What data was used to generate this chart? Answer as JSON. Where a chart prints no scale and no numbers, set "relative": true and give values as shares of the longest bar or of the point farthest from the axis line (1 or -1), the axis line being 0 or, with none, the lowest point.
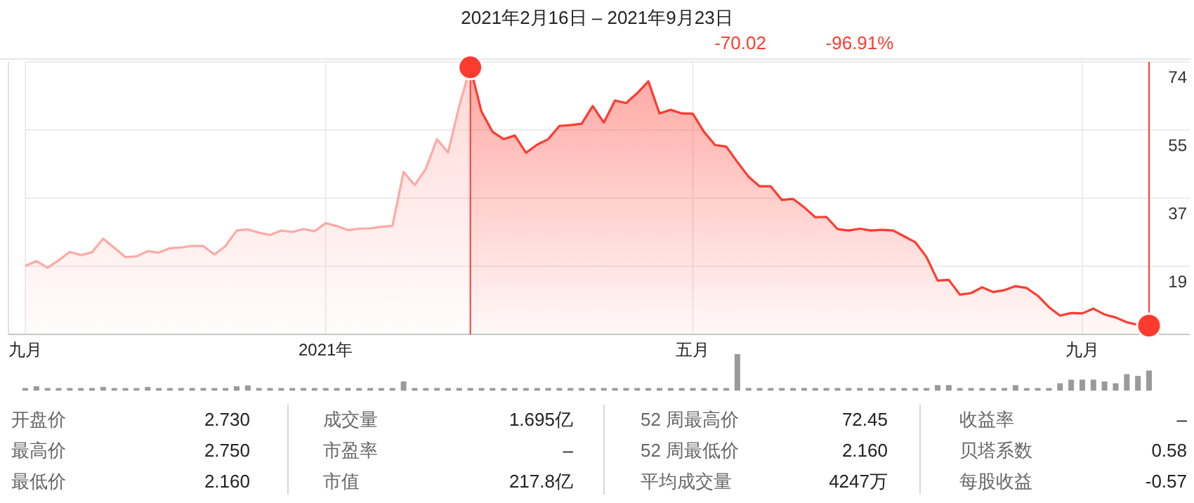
{
  "chart_data": [
    {
      "type": "area",
      "title": "2021年2月16日 – 2021年9月23日",
      "annotations": [
        "-70.02",
        "-96.91%"
      ],
      "categories": [
        "九月",
        null,
        null,
        null,
        null,
        null,
        null,
        null,
        null,
        null,
        null,
        null,
        null,
        null,
        null,
        null,
        null,
        null,
        null,
        null,
        null,
        null,
        null,
        null,
        null,
        null,
        null,
        "2021年",
        null,
        null,
        null,
        null,
        null,
        null,
        null,
        null,
        null,
        null,
        null,
        null,
        null,
        null,
        null,
        null,
        null,
        null,
        null,
        null,
        null,
        null,
        null,
        null,
        null,
        null,
        null,
        null,
        null,
        null,
        null,
        null,
        "五月",
        null,
        null,
        null,
        null,
        null,
        null,
        null,
        null,
        null,
        null,
        null,
        null,
        null,
        null,
        null,
        null,
        null,
        null,
        null,
        null,
        null,
        null,
        null,
        null,
        null,
        null,
        null,
        null,
        null,
        null,
        null,
        null,
        null,
        null,
        "九月",
        null,
        null,
        null,
        null,
        null,
        null
      ],
      "ylim": [
        0,
        74
      ],
      "yticks": [
        {
          "value": 18.5,
          "label": "19"
        },
        37,
        {
          "value": 55.5,
          "label": "55"
        },
        74
      ],
      "series": [
        {
          "color": "#ffa9a4",
          "values": [
            18.6,
            19.9,
            18.1,
            20.1,
            22.4,
            21.5,
            22.3,
            26.0,
            23.5,
            21.0,
            21.2,
            22.6,
            22.2,
            23.4,
            23.6,
            24.0,
            24.0,
            21.7,
            24.0,
            28.2,
            28.5,
            27.6,
            27.0,
            28.2,
            27.8,
            28.6,
            28.0,
            30.2,
            29.4,
            28.3,
            28.7,
            28.8,
            29.2,
            29.5,
            44.1,
            40.5,
            45.0,
            53.0,
            49.4,
            62.0,
            72.5,
            null,
            null,
            null,
            null,
            null,
            null,
            null,
            null,
            null,
            null,
            null,
            null,
            null,
            null,
            null,
            null,
            null,
            null,
            null,
            null,
            null,
            null,
            null,
            null,
            null,
            null,
            null,
            null,
            null,
            null,
            null,
            null,
            null,
            null,
            null,
            null,
            null,
            null,
            null,
            null,
            null,
            null,
            null,
            null,
            null,
            null,
            null,
            null,
            null,
            null,
            null,
            null,
            null,
            null,
            null,
            null,
            null,
            null,
            null,
            null,
            null
          ]
        },
        {
          "color": "#ff3b30",
          "values": [
            null,
            null,
            null,
            null,
            null,
            null,
            null,
            null,
            null,
            null,
            null,
            null,
            null,
            null,
            null,
            null,
            null,
            null,
            null,
            null,
            null,
            null,
            null,
            null,
            null,
            null,
            null,
            null,
            null,
            null,
            null,
            null,
            null,
            null,
            null,
            null,
            null,
            null,
            null,
            null,
            72.5,
            60.5,
            55.0,
            53.0,
            54.0,
            49.3,
            51.5,
            53.0,
            56.6,
            56.8,
            57.2,
            62.0,
            57.5,
            63.5,
            62.8,
            65.5,
            68.7,
            60.0,
            61.0,
            60.0,
            59.9,
            55.0,
            51.4,
            51.0,
            46.8,
            42.8,
            40.2,
            40.2,
            36.5,
            36.8,
            34.5,
            31.8,
            31.9,
            28.6,
            28.2,
            28.7,
            28.2,
            28.4,
            28.2,
            26.6,
            25.0,
            21.0,
            14.6,
            14.8,
            10.8,
            11.2,
            12.8,
            11.5,
            12.0,
            13.1,
            12.6,
            10.5,
            7.4,
            5.1,
            5.8,
            5.7,
            7.0,
            5.4,
            4.6,
            3.3,
            2.6,
            2.4
          ]
        },
        {
          "type": "scatter",
          "marker": "circle",
          "color": "#ff3b30",
          "values": [
            null,
            null,
            null,
            null,
            null,
            null,
            null,
            null,
            null,
            null,
            null,
            null,
            null,
            null,
            null,
            null,
            null,
            null,
            null,
            null,
            null,
            null,
            null,
            null,
            null,
            null,
            null,
            null,
            null,
            null,
            null,
            null,
            null,
            null,
            null,
            null,
            null,
            null,
            null,
            null,
            72.5,
            null,
            null,
            null,
            null,
            null,
            null,
            null,
            null,
            null,
            null,
            null,
            null,
            null,
            null,
            null,
            null,
            null,
            null,
            null,
            null,
            null,
            null,
            null,
            null,
            null,
            null,
            null,
            null,
            null,
            null,
            null,
            null,
            null,
            null,
            null,
            null,
            null,
            null,
            null,
            null,
            null,
            null,
            null,
            null,
            null,
            null,
            null,
            null,
            null,
            null,
            null,
            null,
            null,
            null,
            null,
            null,
            null,
            null,
            null,
            null,
            2.4
          ]
        }
      ],
      "grid": true
    },
    {
      "type": "bar",
      "relative": true,
      "color": "#9a9a9a",
      "categories": [
        null,
        null,
        null,
        null,
        null,
        null,
        null,
        null,
        null,
        null,
        null,
        null,
        null,
        null,
        null,
        null,
        null,
        null,
        null,
        null,
        null,
        null,
        null,
        null,
        null,
        null,
        null,
        null,
        null,
        null,
        null,
        null,
        null,
        null,
        null,
        null,
        null,
        null,
        null,
        null,
        null,
        null,
        null,
        null,
        null,
        null,
        null,
        null,
        null,
        null,
        null,
        null,
        null,
        null,
        null,
        null,
        null,
        null,
        null,
        null,
        null,
        null,
        null,
        null,
        null,
        null,
        null,
        null,
        null,
        null,
        null,
        null,
        null,
        null,
        null,
        null,
        null,
        null,
        null,
        null,
        null,
        null,
        null,
        null,
        null,
        null,
        null,
        null,
        null,
        null,
        null,
        null,
        null,
        null,
        null,
        null,
        null,
        null,
        null,
        null,
        null,
        null
      ],
      "values": [
        0.07,
        0.12,
        0.07,
        0.07,
        0.07,
        0.07,
        0.07,
        0.1,
        0.07,
        0.07,
        0.07,
        0.1,
        0.07,
        0.07,
        0.07,
        0.07,
        0.07,
        0.07,
        0.07,
        0.12,
        0.14,
        0.07,
        0.07,
        0.07,
        0.07,
        0.07,
        0.07,
        0.07,
        0.07,
        0.07,
        0.07,
        0.07,
        0.07,
        0.07,
        0.25,
        0.07,
        0.07,
        0.07,
        0.07,
        0.07,
        0.07,
        0.07,
        0.07,
        0.07,
        0.07,
        0.07,
        0.07,
        0.07,
        0.07,
        0.07,
        0.07,
        0.07,
        0.07,
        0.07,
        0.07,
        0.07,
        0.07,
        0.07,
        0.07,
        0.07,
        0.07,
        0.07,
        0.07,
        0.07,
        1,
        0.07,
        0.07,
        0.07,
        0.07,
        0.07,
        0.07,
        0.07,
        0.07,
        0.07,
        0.07,
        0.07,
        0.07,
        0.07,
        0.07,
        0.07,
        0.07,
        0.07,
        0.15,
        0.15,
        0.07,
        0.07,
        0.07,
        0.07,
        0.07,
        0.15,
        0.07,
        0.07,
        0.07,
        0.2,
        0.3,
        0.3,
        0.3,
        0.25,
        0.2,
        0.45,
        0.4,
        0.55
      ]
    },
    {
      "type": "other",
      "annotations": [
        "开盘价",
        "2.730",
        "最高价",
        "2.750",
        "最低价",
        "2.160",
        "成交量",
        "1.695亿",
        "市盈率",
        "–",
        "市值",
        "217.8亿",
        "52 周最高价",
        "72.45",
        "52 周最低价",
        "2.160",
        "平均成交量",
        "4247万",
        "收益率",
        "–",
        "贝塔系数",
        "0.58",
        "每股收益",
        "-0.57"
      ]
    }
  ]
}
